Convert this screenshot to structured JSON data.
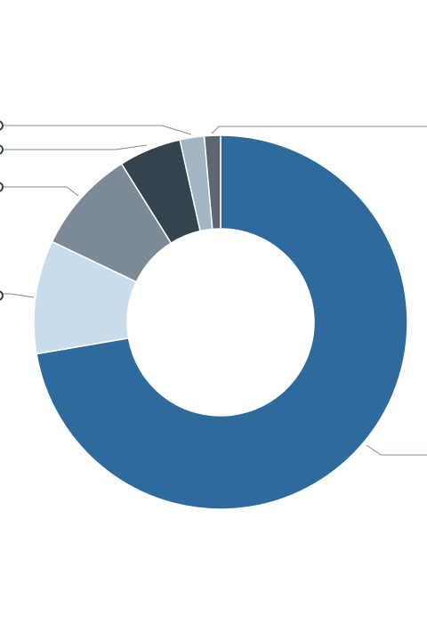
{
  "chart_data": {
    "type": "donut",
    "values": [
      72.3,
      9.8,
      9.0,
      5.4,
      2.1,
      1.4
    ],
    "colors": [
      "#2e6a9c",
      "#c9dcec",
      "#7b8a96",
      "#34444f",
      "#a3b5c2",
      "#5a6670"
    ]
  }
}
